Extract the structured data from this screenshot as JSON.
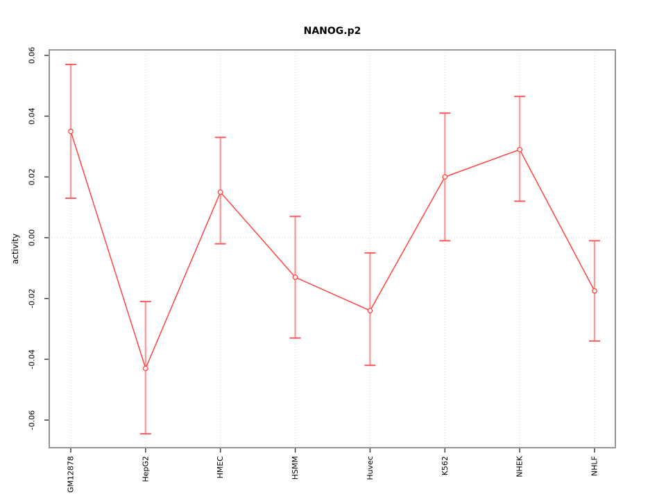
{
  "chart_data": {
    "type": "line",
    "title": "NANOG.p2",
    "xlabel": "",
    "ylabel": "activity",
    "categories": [
      "GM12878",
      "HepG2",
      "HMEC",
      "HSMM",
      "Huvec",
      "K562",
      "NHEK",
      "NHLF"
    ],
    "series": [
      {
        "name": "activity",
        "values": [
          0.035,
          -0.043,
          0.015,
          -0.013,
          -0.024,
          0.02,
          0.029,
          -0.0175
        ],
        "error_low": [
          0.013,
          -0.0645,
          -0.002,
          -0.033,
          -0.042,
          -0.001,
          0.012,
          -0.034
        ],
        "error_high": [
          0.057,
          -0.021,
          0.033,
          0.007,
          -0.005,
          0.041,
          0.0465,
          -0.001
        ]
      }
    ],
    "ytick_values": [
      0.06,
      0.04,
      0.02,
      0.0,
      -0.02,
      -0.04,
      -0.06
    ],
    "ytick_labels": [
      "0.06",
      "0.04",
      "0.02",
      "0.00",
      "-0.02",
      "-0.04",
      "-0.06"
    ],
    "ylim": [
      -0.0691,
      0.0618
    ],
    "grid": "dotted vertical line at each category and dotted horizontal line at zero",
    "legend_position": "none",
    "colors": {
      "line": "#ff4242",
      "point_fill": "#ffffff",
      "error_stem": "#f59e9e",
      "error_cap": "#ff5a5a",
      "grid": "#d8d8d8",
      "frame": "#959595",
      "tick": "#3d3d3d",
      "text": "#000000"
    }
  }
}
